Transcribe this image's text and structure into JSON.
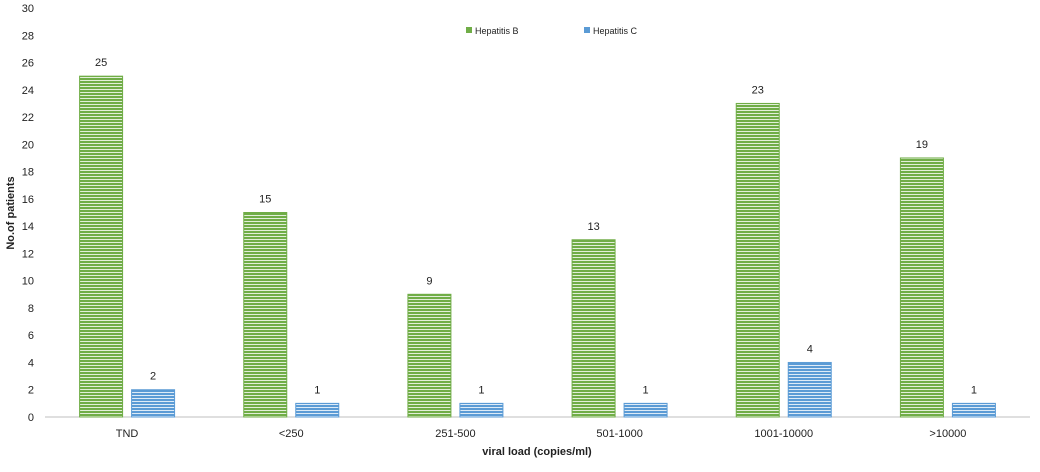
{
  "chart_data": {
    "type": "bar",
    "title": "",
    "xlabel": "viral load (copies/ml)",
    "ylabel": "No.of patients",
    "ylim": [
      0,
      30
    ],
    "ytick_step": 2,
    "grid": false,
    "legend_position": "top-center",
    "categories": [
      "TND",
      "<250",
      "251-500",
      "501-1000",
      "1001-10000",
      ">10000"
    ],
    "series": [
      {
        "name": "Hepatitis B",
        "values": [
          25,
          15,
          9,
          13,
          23,
          19
        ],
        "color": "#70AD47",
        "stripe": "#E2EFD9"
      },
      {
        "name": "Hepatitis C",
        "values": [
          2,
          1,
          1,
          1,
          4,
          1
        ],
        "color": "#5B9BD5",
        "stripe": "#DDEBF7"
      }
    ]
  }
}
